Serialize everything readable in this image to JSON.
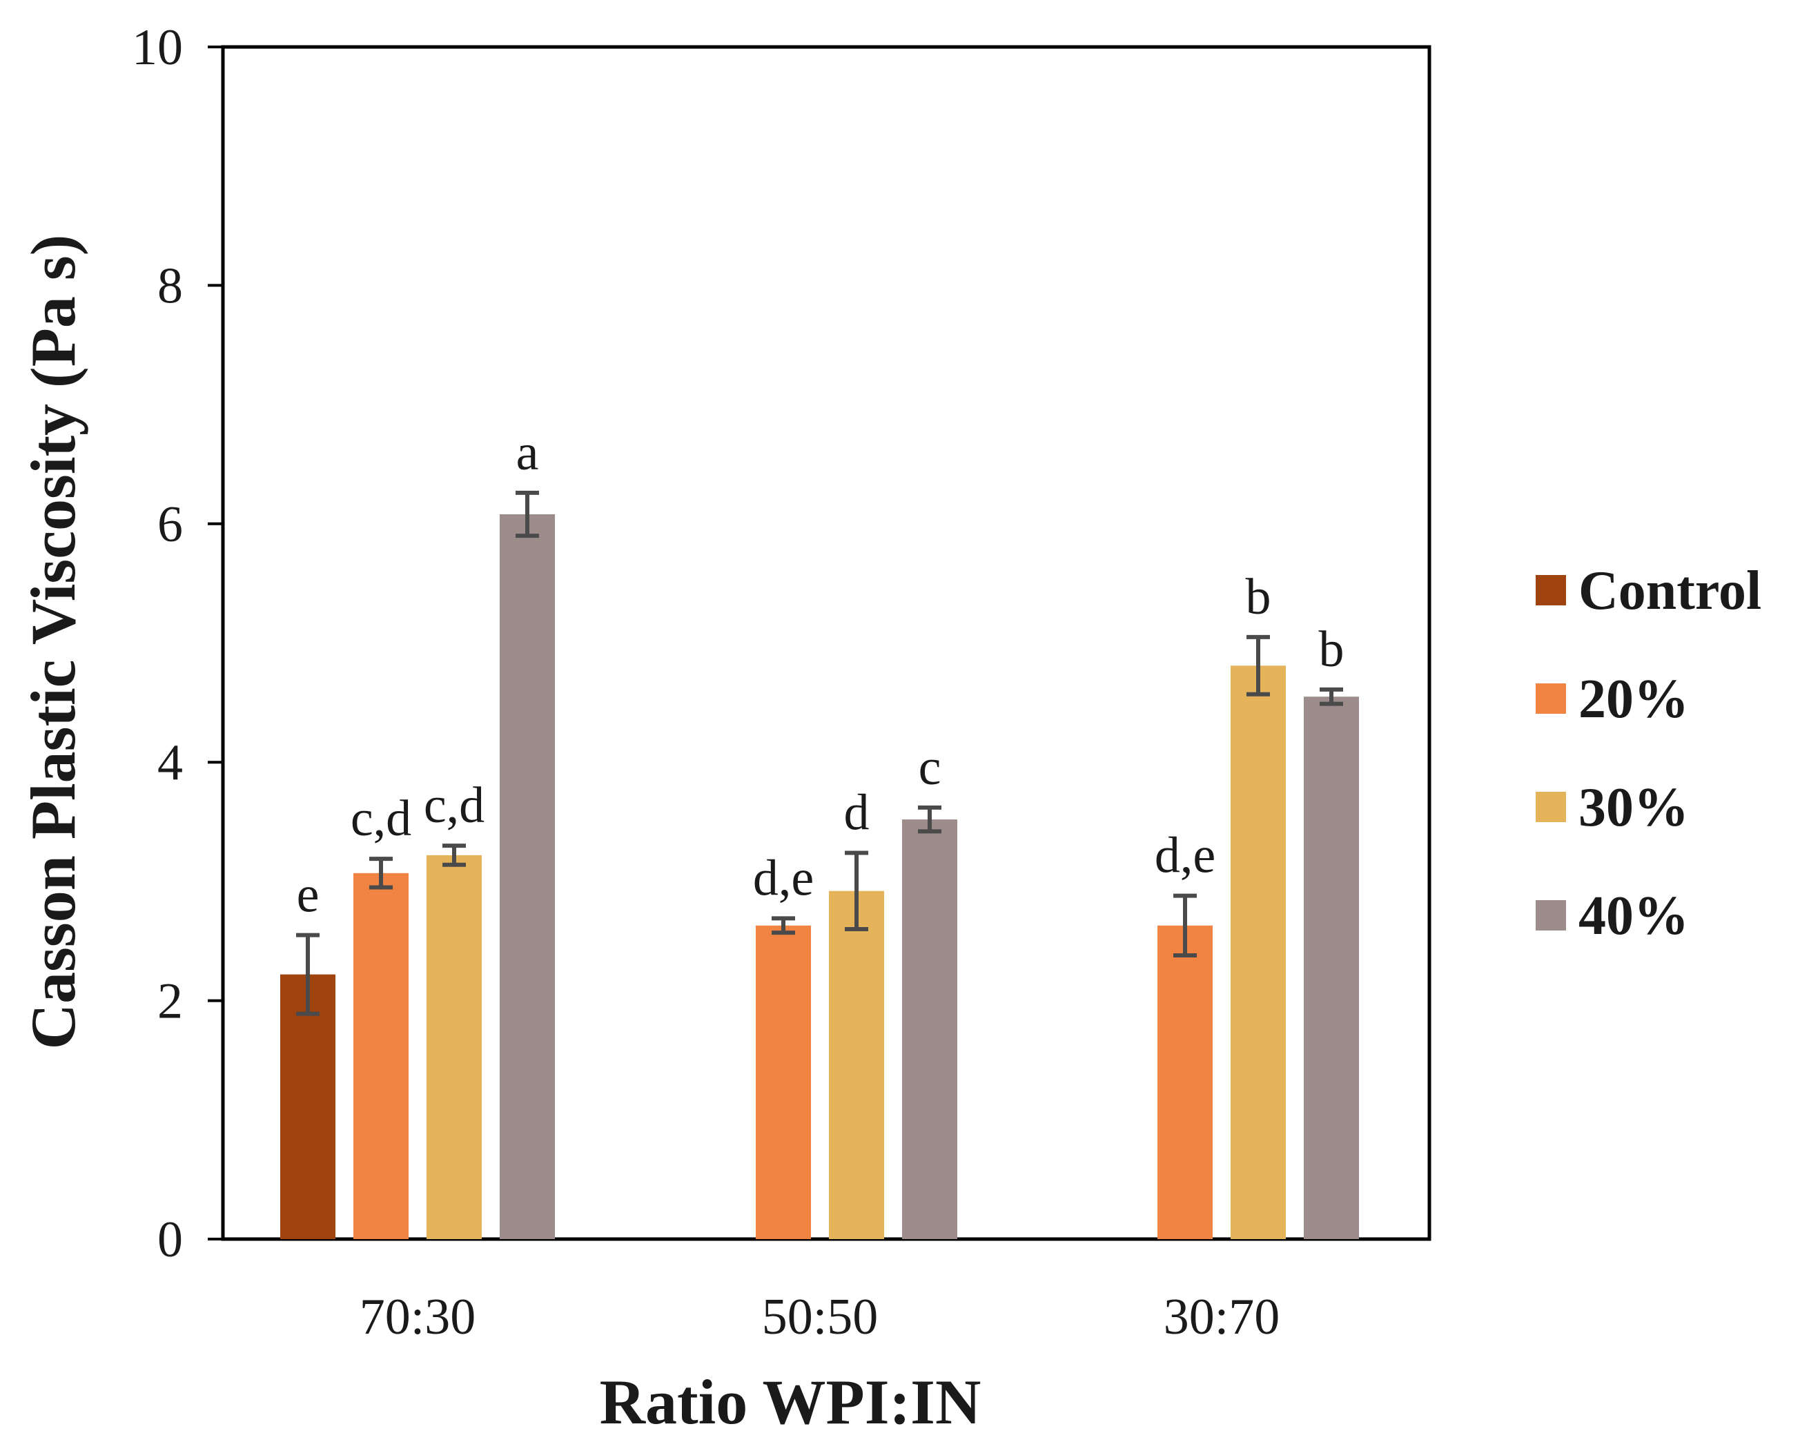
{
  "chart_data": {
    "type": "bar",
    "title": "",
    "xlabel": "Ratio WPI:IN",
    "ylabel": "Casson Plastic Viscosity (Pa s)",
    "ylim": [
      0,
      10
    ],
    "yticks": [
      0,
      2,
      4,
      6,
      8,
      10
    ],
    "categories": [
      "70:30",
      "50:50",
      "30:70"
    ],
    "legend_position": "right",
    "series": [
      {
        "name": "Control",
        "color": "#A0440F",
        "values": [
          2.22,
          null,
          null
        ],
        "errors": [
          0.33,
          null,
          null
        ],
        "labels": [
          "e",
          null,
          null
        ]
      },
      {
        "name": "20%",
        "color": "#F28443",
        "values": [
          3.07,
          2.63,
          2.63
        ],
        "errors": [
          0.12,
          0.06,
          0.25
        ],
        "labels": [
          "c,d",
          "d,e",
          "d,e"
        ]
      },
      {
        "name": "30%",
        "color": "#E4B35A",
        "values": [
          3.22,
          2.92,
          4.81
        ],
        "errors": [
          0.08,
          0.32,
          0.24
        ],
        "labels": [
          "c,d",
          "d",
          "b"
        ]
      },
      {
        "name": "40%",
        "color": "#9C8C8A",
        "values": [
          6.08,
          3.52,
          4.55
        ],
        "errors": [
          0.18,
          0.1,
          0.06
        ],
        "labels": [
          "a",
          "c",
          "b"
        ]
      }
    ]
  }
}
